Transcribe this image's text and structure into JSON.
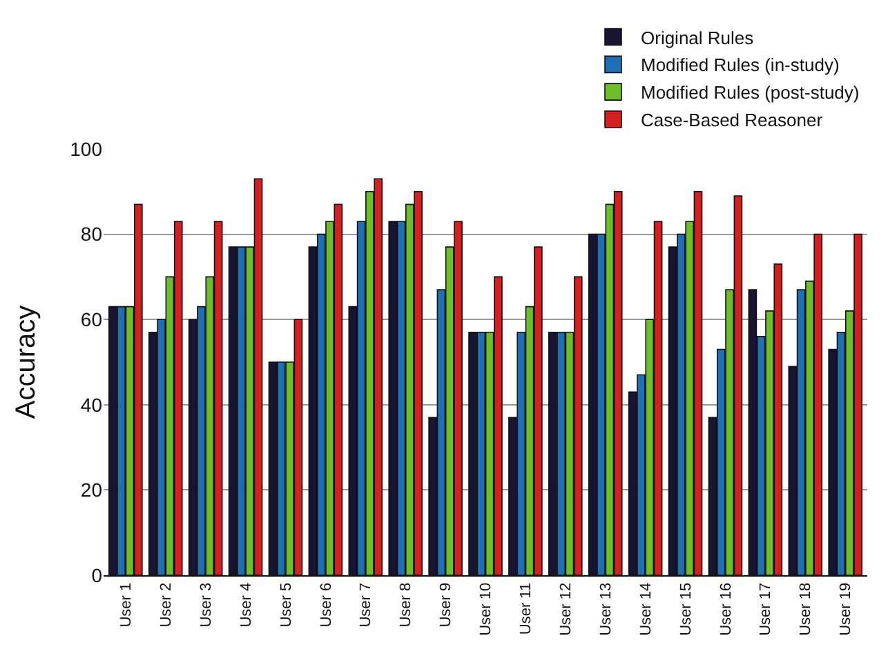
{
  "chart_data": {
    "type": "bar",
    "ylabel": "Accuracy",
    "categories": [
      "User 1",
      "User 2",
      "User 3",
      "User 4",
      "User 5",
      "User 6",
      "User 7",
      "User 8",
      "User 9",
      "User 10",
      "User 11",
      "User 12",
      "User 13",
      "User 14",
      "User 15",
      "User 16",
      "User 17",
      "User 18",
      "User 19"
    ],
    "series": [
      {
        "name": "Original Rules",
        "color": "#1a1433",
        "values": [
          63,
          57,
          60,
          77,
          50,
          77,
          63,
          83,
          37,
          57,
          37,
          57,
          80,
          43,
          77,
          37,
          67,
          49,
          53
        ]
      },
      {
        "name": "Modified Rules (in-study)",
        "color": "#1f6fb5",
        "values": [
          63,
          60,
          63,
          77,
          50,
          80,
          83,
          83,
          67,
          57,
          57,
          57,
          80,
          47,
          80,
          53,
          56,
          67,
          57
        ]
      },
      {
        "name": "Modified Rules (post-study)",
        "color": "#6cbf2a",
        "values": [
          63,
          70,
          70,
          77,
          50,
          83,
          90,
          87,
          77,
          57,
          63,
          57,
          87,
          60,
          83,
          67,
          62,
          69,
          62
        ]
      },
      {
        "name": "Case-Based Reasoner",
        "color": "#d42020",
        "values": [
          87,
          83,
          83,
          93,
          60,
          87,
          93,
          90,
          83,
          70,
          77,
          70,
          90,
          83,
          90,
          89,
          73,
          80,
          80
        ]
      }
    ],
    "ylim": [
      0,
      100
    ],
    "yticks": [
      0,
      20,
      40,
      60,
      80,
      100
    ],
    "grid": "y",
    "legend": "top right"
  }
}
